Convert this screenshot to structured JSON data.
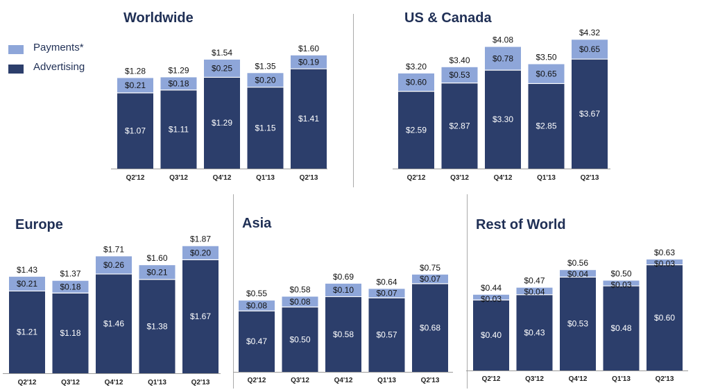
{
  "legend": {
    "items": [
      {
        "label": "Payments*",
        "color": "#8ea6d9"
      },
      {
        "label": "Advertising",
        "color": "#2c3e6b"
      }
    ]
  },
  "colors": {
    "payments": "#8ea6d9",
    "advertising": "#2c3e6b",
    "title": "#1f2f55"
  },
  "chart_data": [
    {
      "type": "bar",
      "title": "Worldwide",
      "categories": [
        "Q2'12",
        "Q3'12",
        "Q4'12",
        "Q1'13",
        "Q2'13"
      ],
      "series": [
        {
          "name": "Advertising",
          "values": [
            1.07,
            1.11,
            1.29,
            1.15,
            1.41
          ],
          "labels": [
            "$1.07",
            "$1.11",
            "$1.29",
            "$1.15",
            "$1.41"
          ]
        },
        {
          "name": "Payments*",
          "values": [
            0.21,
            0.18,
            0.25,
            0.2,
            0.19
          ],
          "labels": [
            "$0.21",
            "$0.18",
            "$0.25",
            "$0.20",
            "$0.19"
          ]
        }
      ],
      "totals": [
        "$1.28",
        "$1.29",
        "$1.54",
        "$1.35",
        "$1.60"
      ],
      "stacked": true
    },
    {
      "type": "bar",
      "title": "US & Canada",
      "categories": [
        "Q2'12",
        "Q3'12",
        "Q4'12",
        "Q1'13",
        "Q2'13"
      ],
      "series": [
        {
          "name": "Advertising",
          "values": [
            2.59,
            2.87,
            3.3,
            2.85,
            3.67
          ],
          "labels": [
            "$2.59",
            "$2.87",
            "$3.30",
            "$2.85",
            "$3.67"
          ]
        },
        {
          "name": "Payments*",
          "values": [
            0.6,
            0.53,
            0.78,
            0.65,
            0.65
          ],
          "labels": [
            "$0.60",
            "$0.53",
            "$0.78",
            "$0.65",
            "$0.65"
          ]
        }
      ],
      "totals": [
        "$3.20",
        "$3.40",
        "$4.08",
        "$3.50",
        "$4.32"
      ],
      "stacked": true
    },
    {
      "type": "bar",
      "title": "Europe",
      "categories": [
        "Q2'12",
        "Q3'12",
        "Q4'12",
        "Q1'13",
        "Q2'13"
      ],
      "series": [
        {
          "name": "Advertising",
          "values": [
            1.21,
            1.18,
            1.46,
            1.38,
            1.67
          ],
          "labels": [
            "$1.21",
            "$1.18",
            "$1.46",
            "$1.38",
            "$1.67"
          ]
        },
        {
          "name": "Payments*",
          "values": [
            0.21,
            0.18,
            0.26,
            0.21,
            0.2
          ],
          "labels": [
            "$0.21",
            "$0.18",
            "$0.26",
            "$0.21",
            "$0.20"
          ]
        }
      ],
      "totals": [
        "$1.43",
        "$1.37",
        "$1.71",
        "$1.60",
        "$1.87"
      ],
      "stacked": true
    },
    {
      "type": "bar",
      "title": "Asia",
      "categories": [
        "Q2'12",
        "Q3'12",
        "Q4'12",
        "Q1'13",
        "Q2'13"
      ],
      "series": [
        {
          "name": "Advertising",
          "values": [
            0.47,
            0.5,
            0.58,
            0.57,
            0.68
          ],
          "labels": [
            "$0.47",
            "$0.50",
            "$0.58",
            "$0.57",
            "$0.68"
          ]
        },
        {
          "name": "Payments*",
          "values": [
            0.08,
            0.08,
            0.1,
            0.07,
            0.07
          ],
          "labels": [
            "$0.08",
            "$0.08",
            "$0.10",
            "$0.07",
            "$0.07"
          ]
        }
      ],
      "totals": [
        "$0.55",
        "$0.58",
        "$0.69",
        "$0.64",
        "$0.75"
      ],
      "stacked": true
    },
    {
      "type": "bar",
      "title": "Rest of World",
      "categories": [
        "Q2'12",
        "Q3'12",
        "Q4'12",
        "Q1'13",
        "Q2'13"
      ],
      "series": [
        {
          "name": "Advertising",
          "values": [
            0.4,
            0.43,
            0.53,
            0.48,
            0.6
          ],
          "labels": [
            "$0.40",
            "$0.43",
            "$0.53",
            "$0.48",
            "$0.60"
          ]
        },
        {
          "name": "Payments*",
          "values": [
            0.03,
            0.04,
            0.04,
            0.03,
            0.03
          ],
          "labels": [
            "$0.03",
            "$0.04",
            "$0.04",
            "$0.03",
            "$0.03"
          ]
        }
      ],
      "totals": [
        "$0.44",
        "$0.47",
        "$0.56",
        "$0.50",
        "$0.63"
      ],
      "stacked": true
    }
  ]
}
